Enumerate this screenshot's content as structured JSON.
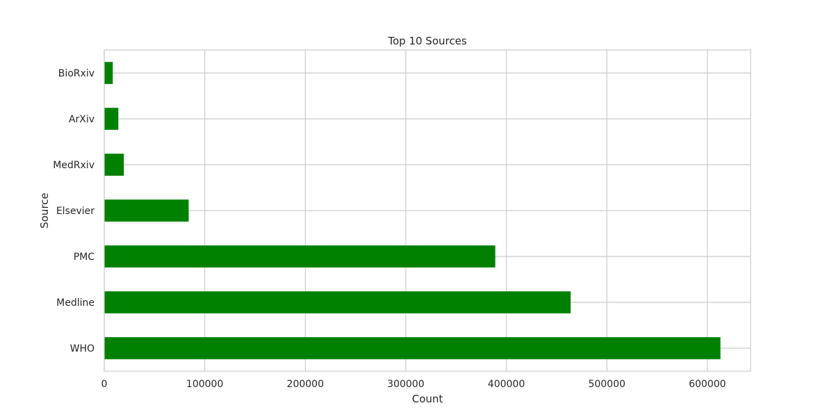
{
  "chart_data": {
    "type": "bar",
    "orientation": "horizontal",
    "title": "Top 10 Sources",
    "xlabel": "Count",
    "ylabel": "Source",
    "categories": [
      "WHO",
      "Medline",
      "PMC",
      "Elsevier",
      "MedRxiv",
      "ArXiv",
      "BioRxiv"
    ],
    "values": [
      613000,
      464000,
      389000,
      84000,
      19500,
      14000,
      8500
    ],
    "xlim": [
      0,
      643000
    ],
    "xticks": [
      0,
      100000,
      200000,
      300000,
      400000,
      500000,
      600000
    ],
    "xtick_labels": [
      "0",
      "100000",
      "200000",
      "300000",
      "400000",
      "500000",
      "600000"
    ],
    "grid": true,
    "bar_color": "#008000",
    "grid_color": "#cccccc",
    "spine_color": "#cccccc"
  }
}
